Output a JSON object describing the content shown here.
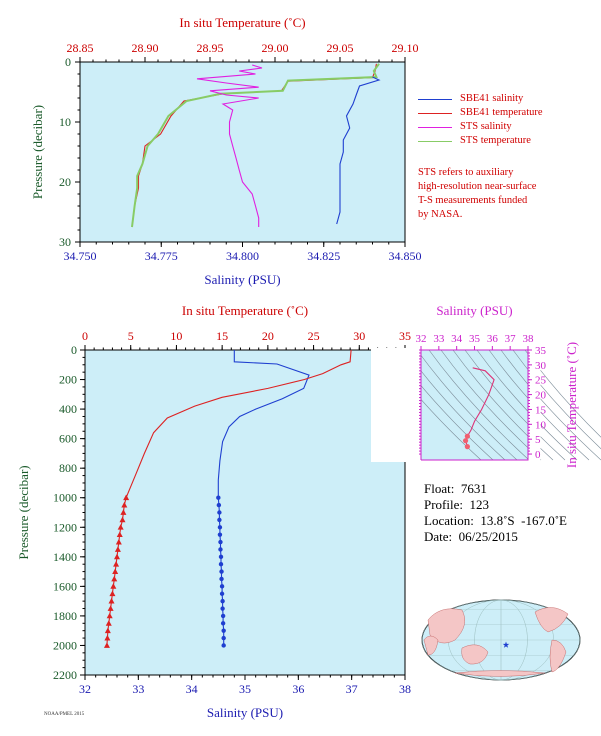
{
  "colors": {
    "panel_bg": "#cdeef8",
    "salinity_axis": "#1a1ab0",
    "temperature_axis": "#cc0000",
    "pressure_axis": "#1a5a2a",
    "ts_axis": "#cc22cc",
    "sbe41_salinity": "#1f3fd0",
    "sbe41_temperature": "#dd2222",
    "sts_salinity": "#e020e0",
    "sts_temperature": "#88cc66"
  },
  "legend": {
    "items": [
      {
        "label": "SBE41 salinity",
        "color": "#1f3fd0"
      },
      {
        "label": "SBE41 temperature",
        "color": "#dd2222"
      },
      {
        "label": "STS salinity",
        "color": "#e020e0"
      },
      {
        "label": "STS temperature",
        "color": "#88cc66"
      }
    ]
  },
  "note": {
    "lines": [
      "STS refers to auxiliary",
      "high-resolution near-surface",
      "T-S measurements funded",
      "by NASA."
    ]
  },
  "float_info": {
    "float": "Float:  7631",
    "profile": "Profile:  123",
    "location": "Location:  13.8˚S  -167.0˚E",
    "date": "Date:  06/25/2015"
  },
  "credit": "NOAA/PMEL 2015",
  "chart_data": [
    {
      "type": "line",
      "name": "near-surface",
      "xlabel_bottom": "Salinity (PSU)",
      "xlabel_top": "In situ Temperature (˚C)",
      "ylabel": "Pressure (decibar)",
      "salinity_range": [
        34.75,
        34.85
      ],
      "temperature_range": [
        28.85,
        29.1
      ],
      "pressure_range": [
        0,
        30
      ],
      "salinity_ticks": [
        "34.750",
        "34.775",
        "34.800",
        "34.825",
        "34.850"
      ],
      "temperature_ticks": [
        "28.85",
        "28.90",
        "28.95",
        "29.00",
        "29.05",
        "29.10"
      ],
      "pressure_ticks": [
        "0",
        "10",
        "20",
        "30"
      ],
      "series": [
        {
          "name": "SBE41 salinity",
          "axis": "salinity",
          "points": [
            [
              34.84,
              2.5
            ],
            [
              34.842,
              3.0
            ],
            [
              34.836,
              4.0
            ],
            [
              34.835,
              5.5
            ],
            [
              34.834,
              7
            ],
            [
              34.832,
              9
            ],
            [
              34.833,
              11
            ],
            [
              34.831,
              13
            ],
            [
              34.831,
              15
            ],
            [
              34.83,
              17
            ],
            [
              34.83,
              19
            ],
            [
              34.83,
              21
            ],
            [
              34.83,
              23
            ],
            [
              34.83,
              25
            ],
            [
              34.829,
              27
            ]
          ]
        },
        {
          "name": "STS salinity",
          "axis": "salinity",
          "points": [
            [
              34.803,
              0.5
            ],
            [
              34.806,
              1.0
            ],
            [
              34.799,
              1.5
            ],
            [
              34.804,
              2.0
            ],
            [
              34.786,
              2.8
            ],
            [
              34.795,
              3.5
            ],
            [
              34.805,
              4.2
            ],
            [
              34.79,
              4.8
            ],
            [
              34.795,
              5.5
            ],
            [
              34.805,
              6.0
            ],
            [
              34.794,
              7.0
            ],
            [
              34.797,
              8.0
            ],
            [
              34.796,
              10
            ],
            [
              34.796,
              12
            ],
            [
              34.797,
              14
            ],
            [
              34.798,
              16
            ],
            [
              34.799,
              18
            ],
            [
              34.8,
              20
            ],
            [
              34.803,
              22
            ],
            [
              34.804,
              24
            ],
            [
              34.805,
              26
            ],
            [
              34.805,
              27.5
            ]
          ]
        },
        {
          "name": "SBE41 temperature",
          "axis": "temperature",
          "points": [
            [
              29.078,
              0.3
            ],
            [
              29.077,
              1.5
            ],
            [
              29.075,
              2.6
            ],
            [
              29.01,
              3.2
            ],
            [
              29.005,
              4.8
            ],
            [
              28.96,
              5.3
            ],
            [
              28.93,
              6.5
            ],
            [
              28.92,
              9
            ],
            [
              28.912,
              12
            ],
            [
              28.9,
              14
            ],
            [
              28.898,
              17
            ],
            [
              28.895,
              19
            ],
            [
              28.895,
              21
            ],
            [
              28.892,
              24
            ],
            [
              28.89,
              27.5
            ]
          ]
        },
        {
          "name": "STS temperature",
          "axis": "temperature",
          "points": [
            [
              29.08,
              0.3
            ],
            [
              29.076,
              1.5
            ],
            [
              29.078,
              2.5
            ],
            [
              29.01,
              3.1
            ],
            [
              29.006,
              4.8
            ],
            [
              28.958,
              5.3
            ],
            [
              28.932,
              6.5
            ],
            [
              28.918,
              9
            ],
            [
              28.91,
              12
            ],
            [
              28.902,
              14
            ],
            [
              28.898,
              17
            ],
            [
              28.894,
              19
            ],
            [
              28.894,
              21
            ],
            [
              28.892,
              24
            ],
            [
              28.89,
              27.5
            ]
          ]
        }
      ]
    },
    {
      "type": "line",
      "name": "full-depth",
      "xlabel_bottom": "Salinity (PSU)",
      "xlabel_top": "In situ Temperature (˚C)",
      "ylabel": "Pressure (decibar)",
      "salinity_range": [
        32,
        38
      ],
      "temperature_range": [
        0,
        35
      ],
      "pressure_range": [
        0,
        2200
      ],
      "salinity_ticks": [
        "32",
        "33",
        "34",
        "35",
        "36",
        "37",
        "38"
      ],
      "temperature_ticks": [
        "0",
        "5",
        "10",
        "15",
        "20",
        "25",
        "30",
        "35"
      ],
      "pressure_ticks": [
        "0",
        "200",
        "400",
        "600",
        "800",
        "1000",
        "1200",
        "1400",
        "1600",
        "1800",
        "2000",
        "2200"
      ],
      "series": [
        {
          "name": "SBE41 salinity",
          "axis": "salinity",
          "points": [
            [
              34.8,
              0
            ],
            [
              34.8,
              80
            ],
            [
              35.6,
              95
            ],
            [
              36.2,
              170
            ],
            [
              36.1,
              260
            ],
            [
              35.7,
              330
            ],
            [
              35.2,
              400
            ],
            [
              34.9,
              450
            ],
            [
              34.7,
              520
            ],
            [
              34.58,
              620
            ],
            [
              34.53,
              750
            ],
            [
              34.5,
              880
            ],
            [
              34.5,
              1000
            ]
          ]
        },
        {
          "name": "SBE41 salinity deep",
          "axis": "salinity",
          "markers": "circle",
          "points": [
            [
              34.5,
              1000
            ],
            [
              34.51,
              1050
            ],
            [
              34.52,
              1100
            ],
            [
              34.52,
              1150
            ],
            [
              34.53,
              1200
            ],
            [
              34.53,
              1250
            ],
            [
              34.54,
              1300
            ],
            [
              34.54,
              1350
            ],
            [
              34.55,
              1400
            ],
            [
              34.55,
              1450
            ],
            [
              34.56,
              1500
            ],
            [
              34.56,
              1550
            ],
            [
              34.57,
              1600
            ],
            [
              34.57,
              1650
            ],
            [
              34.58,
              1700
            ],
            [
              34.58,
              1750
            ],
            [
              34.59,
              1800
            ],
            [
              34.59,
              1850
            ],
            [
              34.6,
              1900
            ],
            [
              34.6,
              1950
            ],
            [
              34.6,
              2000
            ]
          ]
        },
        {
          "name": "SBE41 temperature",
          "axis": "temperature",
          "points": [
            [
              29.1,
              0
            ],
            [
              29.0,
              80
            ],
            [
              28.0,
              100
            ],
            [
              26.0,
              160
            ],
            [
              24.0,
              200
            ],
            [
              20.0,
              260
            ],
            [
              15.0,
              320
            ],
            [
              12.0,
              380
            ],
            [
              9.0,
              460
            ],
            [
              7.5,
              560
            ],
            [
              6.5,
              700
            ],
            [
              5.5,
              850
            ],
            [
              4.5,
              1000
            ]
          ]
        },
        {
          "name": "SBE41 temperature deep",
          "axis": "temperature",
          "markers": "triangle",
          "points": [
            [
              4.5,
              1000
            ],
            [
              4.3,
              1050
            ],
            [
              4.2,
              1100
            ],
            [
              4.1,
              1150
            ],
            [
              3.9,
              1200
            ],
            [
              3.8,
              1250
            ],
            [
              3.7,
              1300
            ],
            [
              3.6,
              1350
            ],
            [
              3.5,
              1400
            ],
            [
              3.4,
              1450
            ],
            [
              3.3,
              1500
            ],
            [
              3.2,
              1550
            ],
            [
              3.1,
              1600
            ],
            [
              3.0,
              1650
            ],
            [
              2.9,
              1700
            ],
            [
              2.8,
              1750
            ],
            [
              2.7,
              1800
            ],
            [
              2.6,
              1850
            ],
            [
              2.5,
              1900
            ],
            [
              2.45,
              1950
            ],
            [
              2.4,
              2000
            ]
          ]
        }
      ]
    },
    {
      "type": "scatter",
      "name": "ts-diagram",
      "xlabel_top": "Salinity (PSU)",
      "ylabel_right": "In situ Temperature (˚C)",
      "salinity_range": [
        32,
        38
      ],
      "temperature_range": [
        -2,
        35
      ],
      "salinity_ticks": [
        "32",
        "33",
        "34",
        "35",
        "36",
        "37",
        "38"
      ],
      "temperature_ticks": [
        "0",
        "5",
        "10",
        "15",
        "20",
        "25",
        "30",
        "35"
      ],
      "series": [
        {
          "name": "T-S curve",
          "points": [
            [
              34.9,
              29.0
            ],
            [
              35.6,
              28.0
            ],
            [
              36.1,
              25.0
            ],
            [
              35.8,
              20.0
            ],
            [
              35.4,
              15.0
            ],
            [
              35.0,
              11.0
            ],
            [
              34.8,
              8.0
            ],
            [
              34.6,
              6.0
            ],
            [
              34.5,
              4.5
            ],
            [
              34.6,
              2.5
            ]
          ]
        }
      ]
    }
  ]
}
